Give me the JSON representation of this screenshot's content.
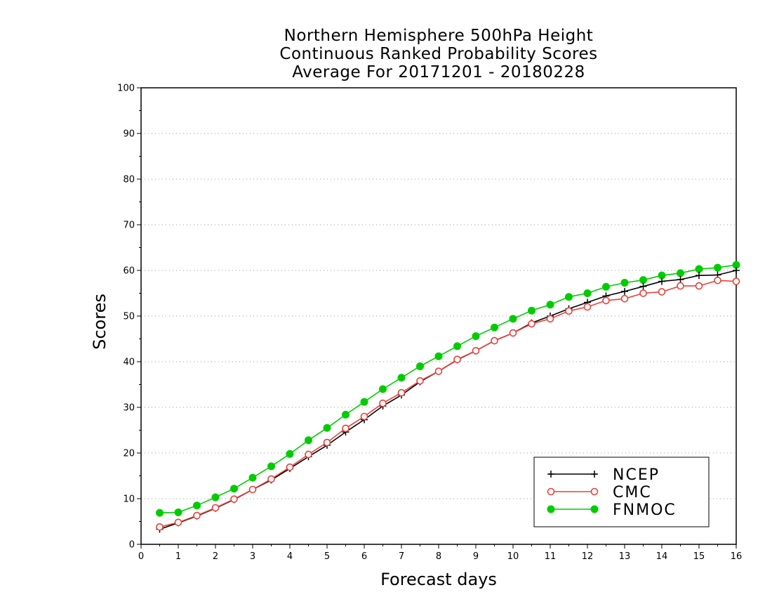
{
  "chart_data": {
    "type": "line",
    "title_lines": [
      "Northern Hemisphere 500hPa Height",
      "Continuous Ranked Probability Scores",
      "Average For 20171201 - 20180228"
    ],
    "xlabel": "Forecast days",
    "ylabel": "Scores",
    "xlim": [
      0,
      16
    ],
    "ylim": [
      0,
      100
    ],
    "xticks": [
      0,
      1,
      2,
      3,
      4,
      5,
      6,
      7,
      8,
      9,
      10,
      11,
      12,
      13,
      14,
      15,
      16
    ],
    "yticks": [
      0,
      10,
      20,
      30,
      40,
      50,
      60,
      70,
      80,
      90,
      100
    ],
    "grid": "horizontal dotted",
    "legend_position": "bottom-right",
    "x": [
      0.5,
      1,
      1.5,
      2,
      2.5,
      3,
      3.5,
      4,
      4.5,
      5,
      5.5,
      6,
      6.5,
      7,
      7.5,
      8,
      8.5,
      9,
      9.5,
      10,
      10.5,
      11,
      11.5,
      12,
      12.5,
      13,
      13.5,
      14,
      14.5,
      15,
      15.5,
      16
    ],
    "series": [
      {
        "name": "NCEP",
        "color": "#000000",
        "marker": "plus",
        "values": [
          3.3,
          4.7,
          6.2,
          7.9,
          9.8,
          12.0,
          14.1,
          16.6,
          19.2,
          21.7,
          24.6,
          27.3,
          30.3,
          32.7,
          35.6,
          37.9,
          40.4,
          42.4,
          44.6,
          46.3,
          48.5,
          50.0,
          51.6,
          53.0,
          54.4,
          55.4,
          56.5,
          57.6,
          58.0,
          58.9,
          59.0,
          60.0
        ]
      },
      {
        "name": "CMC",
        "color": "#e8403a",
        "marker": "open-circle",
        "values": [
          3.8,
          4.8,
          6.3,
          8.0,
          9.9,
          12.0,
          14.3,
          16.9,
          19.7,
          22.3,
          25.4,
          28.0,
          30.9,
          33.2,
          35.8,
          37.9,
          40.5,
          42.4,
          44.6,
          46.3,
          48.3,
          49.4,
          51.1,
          52.0,
          53.4,
          53.8,
          55.0,
          55.3,
          56.6,
          56.6,
          57.8,
          57.6
        ]
      },
      {
        "name": "FNMOC",
        "color": "#00cc00",
        "marker": "filled-circle",
        "values": [
          6.9,
          7.0,
          8.5,
          10.3,
          12.2,
          14.6,
          17.1,
          19.8,
          22.8,
          25.5,
          28.4,
          31.2,
          34.0,
          36.5,
          39.0,
          41.2,
          43.4,
          45.6,
          47.5,
          49.4,
          51.2,
          52.5,
          54.2,
          55.0,
          56.4,
          57.3,
          57.9,
          58.9,
          59.4,
          60.3,
          60.6,
          61.2
        ]
      }
    ]
  }
}
